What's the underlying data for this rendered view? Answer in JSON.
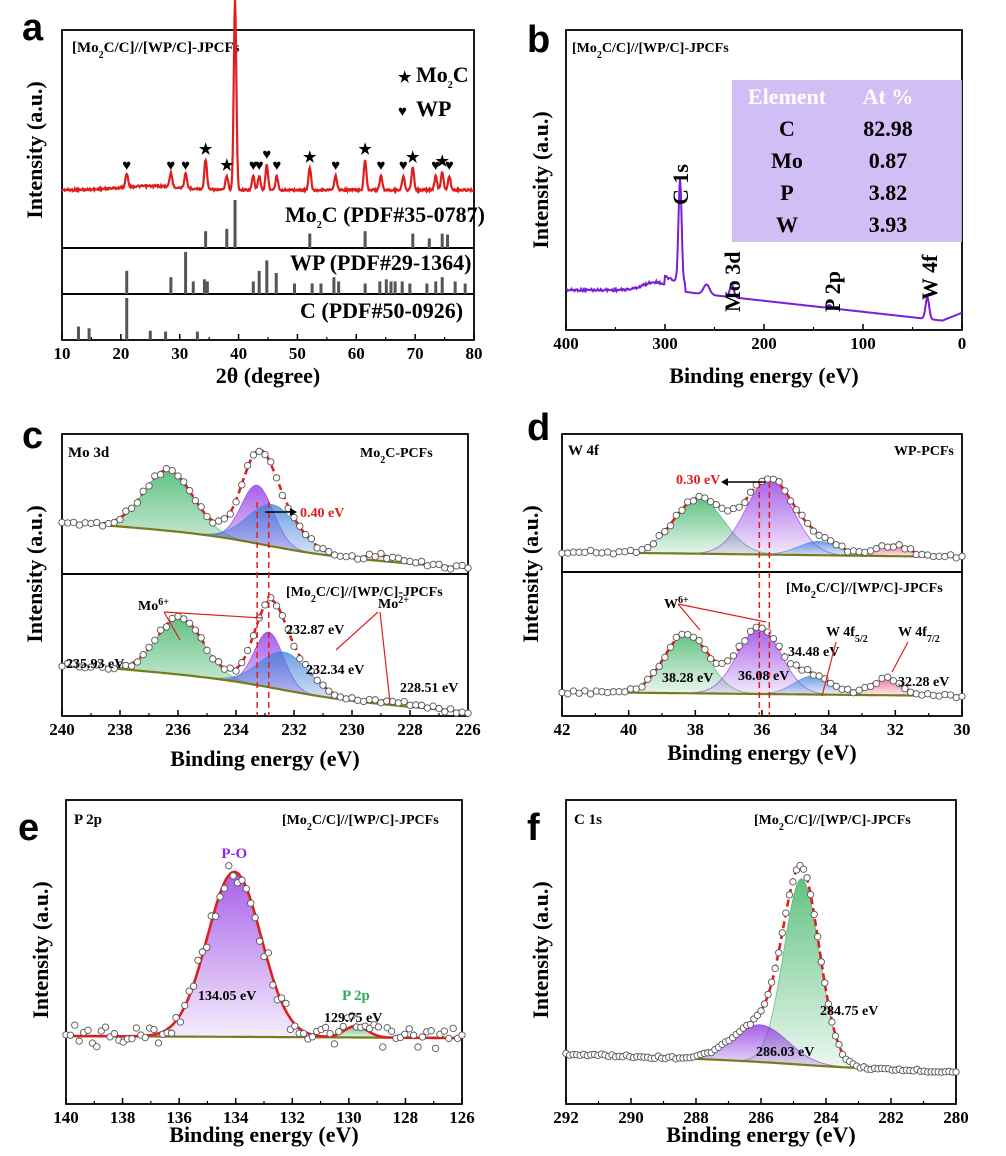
{
  "colors": {
    "fit": "#e01e1e",
    "bg": "#7a7a1a",
    "green": "#2fae5a",
    "purple": "#8a2be2",
    "blue": "#3d7fd9",
    "pink": "#e84a7a",
    "xps": "#7a1fd6",
    "ref": "#555555",
    "table": "#c9b3f2"
  },
  "chart_data": [
    {
      "id": "a",
      "type": "line",
      "panel_label": "a",
      "title": "[Mo2C/C]//[WP/C]-JPCFs",
      "xlabel": "2θ (degree)",
      "ylabel": "Intensity (a.u.)",
      "xlim": [
        10,
        80
      ],
      "xticks": [
        10,
        20,
        30,
        40,
        50,
        60,
        70,
        80
      ],
      "legend": [
        {
          "marker": "★",
          "label": "Mo2C"
        },
        {
          "marker": "♥",
          "label": "WP"
        }
      ],
      "mo2c_peaks": [
        34.4,
        38.0,
        39.4,
        52.1,
        61.5,
        69.6,
        74.6
      ],
      "wp_peaks": [
        21.0,
        28.5,
        31.0,
        42.5,
        43.5,
        44.8,
        46.5,
        56.5,
        64.2,
        68.0,
        73.5,
        75.8
      ],
      "peak_heights": {
        "39.4": 190,
        "31.0": 36,
        "34.4": 30,
        "38.0": 30,
        "52.1": 22,
        "61.5": 30,
        "69.6": 22,
        "74.6": 18,
        "44.8": 25
      },
      "references": [
        {
          "label": "Mo2C (PDF#35-0787)",
          "lines": [
            [
              34.4,
              0.35
            ],
            [
              38.0,
              0.4
            ],
            [
              39.4,
              1.0
            ],
            [
              52.1,
              0.3
            ],
            [
              61.5,
              0.35
            ],
            [
              69.6,
              0.3
            ],
            [
              72.4,
              0.2
            ],
            [
              74.6,
              0.3
            ],
            [
              75.5,
              0.28
            ]
          ]
        },
        {
          "label": "WP (PDF#29-1364)",
          "lines": [
            [
              21.0,
              0.55
            ],
            [
              28.5,
              0.4
            ],
            [
              31.0,
              1.0
            ],
            [
              32.3,
              0.3
            ],
            [
              34.2,
              0.35
            ],
            [
              34.7,
              0.3
            ],
            [
              42.5,
              0.3
            ],
            [
              43.5,
              0.55
            ],
            [
              44.8,
              0.8
            ],
            [
              46.4,
              0.5
            ],
            [
              49.5,
              0.25
            ],
            [
              52.5,
              0.25
            ],
            [
              54.0,
              0.25
            ],
            [
              56.2,
              0.4
            ],
            [
              57.0,
              0.3
            ],
            [
              61.5,
              0.25
            ],
            [
              64.0,
              0.3
            ],
            [
              65.1,
              0.35
            ],
            [
              65.9,
              0.3
            ],
            [
              66.6,
              0.3
            ],
            [
              67.8,
              0.3
            ],
            [
              69.1,
              0.25
            ],
            [
              72.0,
              0.25
            ],
            [
              73.5,
              0.3
            ],
            [
              74.6,
              0.4
            ],
            [
              76.8,
              0.3
            ],
            [
              78.5,
              0.25
            ]
          ]
        },
        {
          "label": "C (PDF#50-0926)",
          "lines": [
            [
              12.8,
              0.32
            ],
            [
              14.6,
              0.28
            ],
            [
              21.0,
              1.0
            ],
            [
              25.0,
              0.22
            ],
            [
              27.6,
              0.2
            ],
            [
              33.0,
              0.2
            ]
          ]
        }
      ]
    },
    {
      "id": "b",
      "type": "line",
      "panel_label": "b",
      "title": "[Mo2C/C]//[WP/C]-JPCFs",
      "xlabel": "Binding energy (eV)",
      "ylabel": "Intensity (a.u.)",
      "xlim": [
        400,
        0
      ],
      "xticks": [
        400,
        300,
        200,
        100,
        0
      ],
      "peaks": [
        {
          "label": "C 1s",
          "x": 284.8,
          "height": 1.0
        },
        {
          "label": "Mo 3d",
          "x": 232.5,
          "height": 0.07
        },
        {
          "label": "P 2p",
          "x": 134,
          "height": 0.02
        },
        {
          "label": "W 4f",
          "x": 35,
          "height": 0.15
        }
      ],
      "table": {
        "headers": [
          "Element",
          "At %"
        ],
        "rows": [
          [
            "C",
            "82.98"
          ],
          [
            "Mo",
            "0.87"
          ],
          [
            "P",
            "3.82"
          ],
          [
            "W",
            "3.93"
          ]
        ]
      }
    },
    {
      "id": "c",
      "type": "line",
      "panel_label": "c",
      "title": "Mo 3d",
      "xlabel": "Binding energy (eV)",
      "ylabel": "Intensity (a.u.)",
      "xlim": [
        240,
        226
      ],
      "xticks": [
        240,
        238,
        236,
        234,
        232,
        230,
        228,
        226
      ],
      "top": {
        "label": "Mo2C-PCFs",
        "shift_label": "0.40 eV",
        "components": [
          {
            "center": 236.33,
            "amp": 0.55,
            "width": 0.85,
            "color": "green"
          },
          {
            "center": 233.27,
            "amp": 0.53,
            "width": 0.55,
            "color": "purple"
          },
          {
            "center": 232.74,
            "amp": 0.38,
            "width": 0.85,
            "color": "blue"
          },
          {
            "center": 228.9,
            "amp": 0.05,
            "width": 0.6,
            "color": "pink"
          }
        ]
      },
      "bottom": {
        "label": "[Mo2C/C]//[WP/C]-JPCFs",
        "components": [
          {
            "center": 235.93,
            "amp": 0.5,
            "width": 0.8,
            "color": "green"
          },
          {
            "center": 232.87,
            "amp": 0.48,
            "width": 0.5,
            "color": "purple"
          },
          {
            "center": 232.34,
            "amp": 0.33,
            "width": 0.85,
            "color": "blue"
          },
          {
            "center": 228.51,
            "amp": 0.04,
            "width": 0.6,
            "color": "pink"
          }
        ],
        "annotations": [
          "Mo6+",
          "Mo2+",
          "235.93 eV",
          "232.87 eV",
          "232.34 eV",
          "228.51 eV"
        ]
      }
    },
    {
      "id": "d",
      "type": "line",
      "panel_label": "d",
      "title": "W 4f",
      "xlabel": "Binding energy (eV)",
      "ylabel": "Intensity (a.u.)",
      "xlim": [
        42,
        30
      ],
      "xticks": [
        42,
        40,
        38,
        36,
        34,
        32,
        30
      ],
      "top": {
        "label": "WP-PCFs",
        "shift_label": "0.30 eV",
        "components": [
          {
            "center": 37.9,
            "amp": 0.6,
            "width": 0.75,
            "color": "green"
          },
          {
            "center": 35.78,
            "amp": 0.82,
            "width": 0.7,
            "color": "purple"
          },
          {
            "center": 34.3,
            "amp": 0.15,
            "width": 0.6,
            "color": "blue"
          },
          {
            "center": 32.1,
            "amp": 0.12,
            "width": 0.5,
            "color": "pink"
          }
        ]
      },
      "bottom": {
        "label": "[Mo2C/C]//[WP/C]-JPCFs",
        "components": [
          {
            "center": 38.28,
            "amp": 0.65,
            "width": 0.65,
            "color": "green"
          },
          {
            "center": 36.08,
            "amp": 0.72,
            "width": 0.65,
            "color": "purple"
          },
          {
            "center": 34.48,
            "amp": 0.2,
            "width": 0.55,
            "color": "blue"
          },
          {
            "center": 32.28,
            "amp": 0.18,
            "width": 0.45,
            "color": "pink"
          }
        ],
        "annotations": [
          "W6+",
          "38.28 eV",
          "36.08 eV",
          "34.48 eV",
          "W 4f5/2",
          "W 4f7/2",
          "32.28 eV"
        ]
      }
    },
    {
      "id": "e",
      "type": "line",
      "panel_label": "e",
      "title": "P 2p",
      "subtitle": "[Mo2C/C]//[WP/C]-JPCFs",
      "xlabel": "Binding energy (eV)",
      "ylabel": "Intensity (a.u.)",
      "xlim": [
        140,
        126
      ],
      "xticks": [
        140,
        138,
        136,
        134,
        132,
        130,
        128,
        126
      ],
      "components": [
        {
          "center": 134.05,
          "amp": 1.0,
          "width": 0.95,
          "color": "purple",
          "label": "P-O"
        },
        {
          "center": 129.75,
          "amp": 0.07,
          "width": 0.4,
          "color": "green",
          "label": "P 2p"
        }
      ],
      "annotations": [
        "134.05 eV",
        "129.75 eV"
      ]
    },
    {
      "id": "f",
      "type": "line",
      "panel_label": "f",
      "title": "C 1s",
      "subtitle": "[Mo2C/C]//[WP/C]-JPCFs",
      "xlabel": "Binding energy (eV)",
      "ylabel": "Intensity (a.u.)",
      "xlim": [
        292,
        280
      ],
      "xticks": [
        292,
        290,
        288,
        286,
        284,
        282,
        280
      ],
      "components": [
        {
          "center": 284.75,
          "amp": 1.0,
          "width": 0.55,
          "color": "green"
        },
        {
          "center": 286.03,
          "amp": 0.2,
          "width": 0.85,
          "color": "purple"
        }
      ],
      "annotations": [
        "284.75 eV",
        "286.03 eV"
      ]
    }
  ]
}
